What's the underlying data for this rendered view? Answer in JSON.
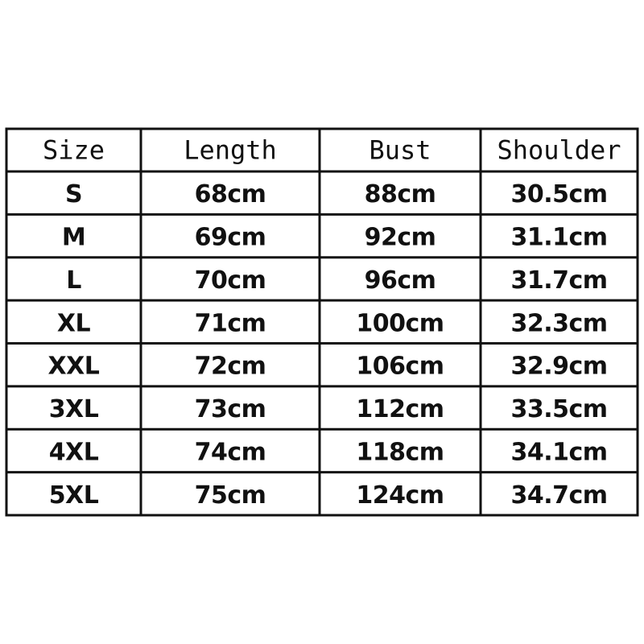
{
  "table": {
    "header": [
      "Size",
      "Length",
      "Bust",
      "Shoulder"
    ],
    "rows": [
      [
        "S",
        "68cm",
        "88cm",
        "30.5cm"
      ],
      [
        "M",
        "69cm",
        "92cm",
        "31.1cm"
      ],
      [
        "L",
        "70cm",
        "96cm",
        "31.7cm"
      ],
      [
        "XL",
        "71cm",
        "100cm",
        "32.3cm"
      ],
      [
        "XXL",
        "72cm",
        "106cm",
        "32.9cm"
      ],
      [
        "3XL",
        "73cm",
        "112cm",
        "33.5cm"
      ],
      [
        "4XL",
        "74cm",
        "118cm",
        "34.1cm"
      ],
      [
        "5XL",
        "75cm",
        "124cm",
        "34.7cm"
      ]
    ]
  }
}
